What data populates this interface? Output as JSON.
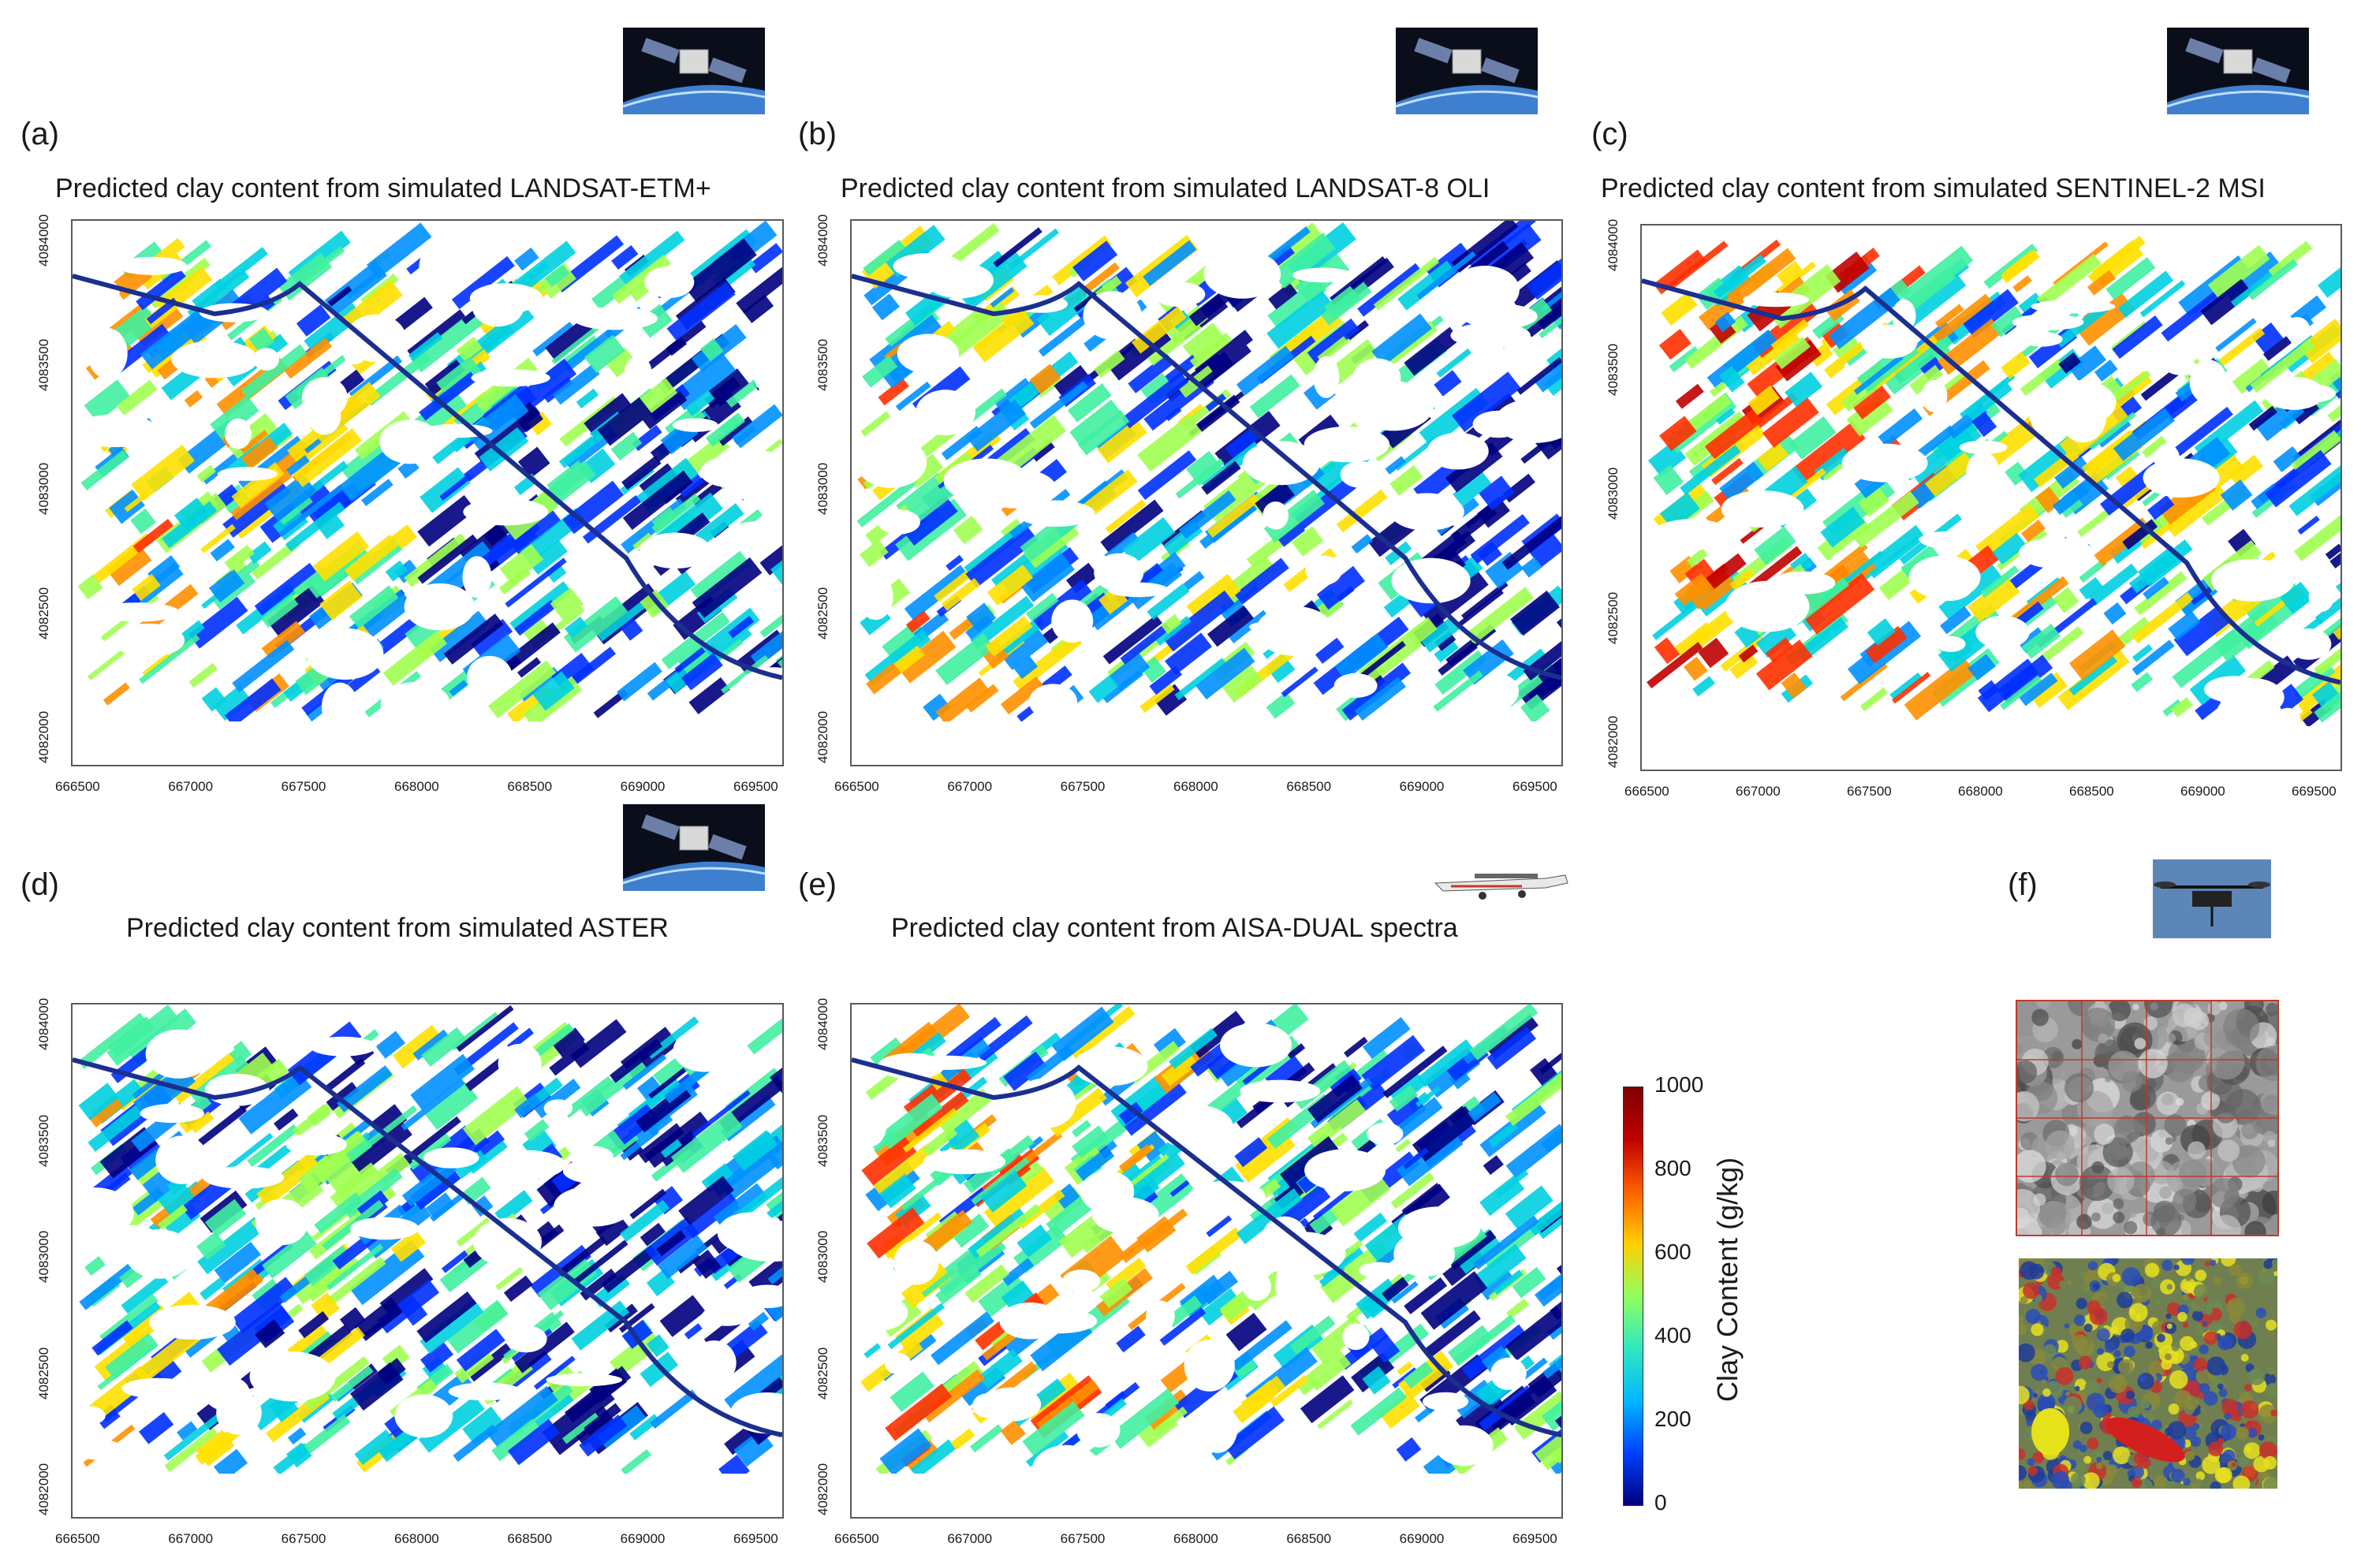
{
  "panels": [
    {
      "label": "(a)",
      "title": "Predicted clay content from simulated LANDSAT-ETM+",
      "platform": "satellite"
    },
    {
      "label": "(b)",
      "title": "Predicted clay content from simulated LANDSAT-8 OLI",
      "platform": "satellite"
    },
    {
      "label": "(c)",
      "title": "Predicted clay content from simulated SENTINEL-2 MSI",
      "platform": "satellite"
    },
    {
      "label": "(d)",
      "title": "Predicted clay content from simulated ASTER",
      "platform": "satellite"
    },
    {
      "label": "(e)",
      "title": "Predicted clay content from AISA-DUAL spectra",
      "platform": "aircraft"
    },
    {
      "label": "(f)",
      "title": "",
      "platform": "drone"
    }
  ],
  "axes": {
    "x_ticks": [
      "666500",
      "667000",
      "667500",
      "668000",
      "668500",
      "669000",
      "669500"
    ],
    "y_ticks": [
      "4082000",
      "4082500",
      "4083000",
      "4083500",
      "4084000"
    ]
  },
  "colorbar": {
    "title": "Clay Content (g/kg)",
    "ticks": [
      "0",
      "200",
      "400",
      "600",
      "800",
      "1000"
    ],
    "colors": [
      "#00007f",
      "#0050ff",
      "#00cfe0",
      "#7fff7f",
      "#ffcf00",
      "#ff3000",
      "#7f0000"
    ]
  }
}
